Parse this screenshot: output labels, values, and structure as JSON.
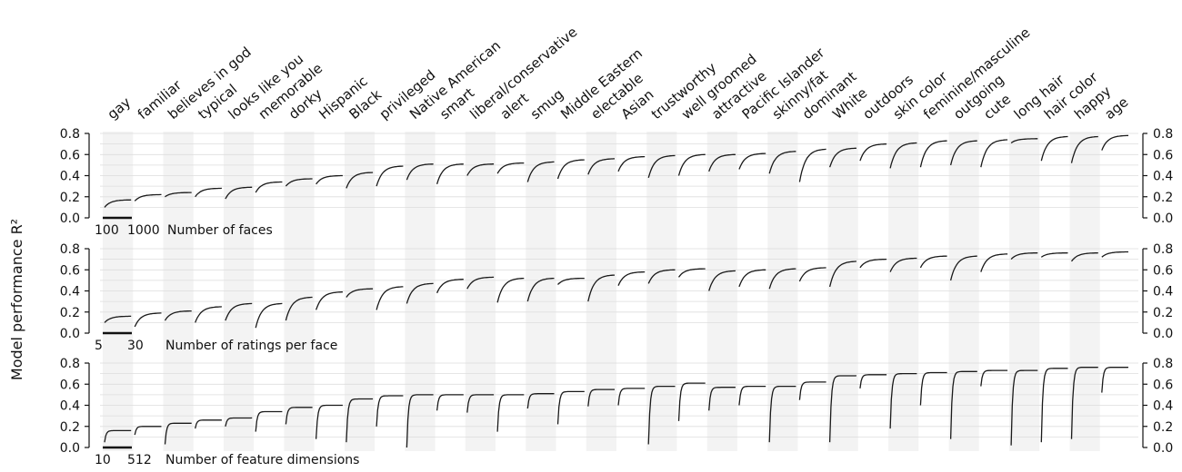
{
  "chart_data": {
    "type": "line",
    "ylabel": "Model performance R²",
    "ylim": [
      0,
      0.8
    ],
    "yticks": [
      "0.0",
      "0.2",
      "0.4",
      "0.6",
      "0.8"
    ],
    "attributes": [
      "gay",
      "familiar",
      "believes in god",
      "typical",
      "looks like you",
      "memorable",
      "dorky",
      "Hispanic",
      "Black",
      "privileged",
      "Native American",
      "smart",
      "liberal/conservative",
      "alert",
      "smug",
      "Middle Eastern",
      "electable",
      "Asian",
      "trustworthy",
      "well groomed",
      "attractive",
      "Pacific Islander",
      "skinny/fat",
      "dominant",
      "White",
      "outdoors",
      "skin color",
      "feminine/masculine",
      "outgoing",
      "cute",
      "long hair",
      "hair color",
      "happy",
      "age"
    ],
    "panels": [
      {
        "name": "faces",
        "xlabel": "Number of faces",
        "scale_start": "100",
        "scale_end": "1000",
        "series": [
          {
            "start": 0.1,
            "end": 0.17
          },
          {
            "start": 0.16,
            "end": 0.22
          },
          {
            "start": 0.2,
            "end": 0.24
          },
          {
            "start": 0.2,
            "end": 0.28
          },
          {
            "start": 0.18,
            "end": 0.29
          },
          {
            "start": 0.24,
            "end": 0.34
          },
          {
            "start": 0.3,
            "end": 0.37
          },
          {
            "start": 0.32,
            "end": 0.4
          },
          {
            "start": 0.28,
            "end": 0.43
          },
          {
            "start": 0.3,
            "end": 0.49
          },
          {
            "start": 0.36,
            "end": 0.51
          },
          {
            "start": 0.32,
            "end": 0.51
          },
          {
            "start": 0.4,
            "end": 0.51
          },
          {
            "start": 0.42,
            "end": 0.52
          },
          {
            "start": 0.34,
            "end": 0.53
          },
          {
            "start": 0.37,
            "end": 0.55
          },
          {
            "start": 0.41,
            "end": 0.56
          },
          {
            "start": 0.44,
            "end": 0.58
          },
          {
            "start": 0.38,
            "end": 0.59
          },
          {
            "start": 0.4,
            "end": 0.6
          },
          {
            "start": 0.44,
            "end": 0.6
          },
          {
            "start": 0.46,
            "end": 0.61
          },
          {
            "start": 0.42,
            "end": 0.63
          },
          {
            "start": 0.34,
            "end": 0.65
          },
          {
            "start": 0.48,
            "end": 0.66
          },
          {
            "start": 0.54,
            "end": 0.7
          },
          {
            "start": 0.47,
            "end": 0.71
          },
          {
            "start": 0.48,
            "end": 0.73
          },
          {
            "start": 0.5,
            "end": 0.73
          },
          {
            "start": 0.48,
            "end": 0.74
          },
          {
            "start": 0.71,
            "end": 0.75
          },
          {
            "start": 0.54,
            "end": 0.77
          },
          {
            "start": 0.52,
            "end": 0.77
          },
          {
            "start": 0.64,
            "end": 0.78
          }
        ]
      },
      {
        "name": "ratings",
        "xlabel": "Number of ratings per face",
        "scale_start": "5",
        "scale_end": "30",
        "series": [
          {
            "start": 0.1,
            "end": 0.16
          },
          {
            "start": 0.06,
            "end": 0.19
          },
          {
            "start": 0.12,
            "end": 0.21
          },
          {
            "start": 0.1,
            "end": 0.25
          },
          {
            "start": 0.12,
            "end": 0.28
          },
          {
            "start": 0.05,
            "end": 0.28
          },
          {
            "start": 0.12,
            "end": 0.34
          },
          {
            "start": 0.22,
            "end": 0.39
          },
          {
            "start": 0.34,
            "end": 0.42
          },
          {
            "start": 0.22,
            "end": 0.44
          },
          {
            "start": 0.28,
            "end": 0.47
          },
          {
            "start": 0.38,
            "end": 0.51
          },
          {
            "start": 0.42,
            "end": 0.53
          },
          {
            "start": 0.29,
            "end": 0.52
          },
          {
            "start": 0.3,
            "end": 0.52
          },
          {
            "start": 0.46,
            "end": 0.52
          },
          {
            "start": 0.3,
            "end": 0.55
          },
          {
            "start": 0.45,
            "end": 0.58
          },
          {
            "start": 0.47,
            "end": 0.6
          },
          {
            "start": 0.53,
            "end": 0.61
          },
          {
            "start": 0.4,
            "end": 0.59
          },
          {
            "start": 0.44,
            "end": 0.6
          },
          {
            "start": 0.42,
            "end": 0.61
          },
          {
            "start": 0.49,
            "end": 0.62
          },
          {
            "start": 0.44,
            "end": 0.68
          },
          {
            "start": 0.62,
            "end": 0.7
          },
          {
            "start": 0.58,
            "end": 0.71
          },
          {
            "start": 0.62,
            "end": 0.73
          },
          {
            "start": 0.5,
            "end": 0.73
          },
          {
            "start": 0.58,
            "end": 0.75
          },
          {
            "start": 0.7,
            "end": 0.76
          },
          {
            "start": 0.72,
            "end": 0.76
          },
          {
            "start": 0.68,
            "end": 0.76
          },
          {
            "start": 0.72,
            "end": 0.77
          }
        ]
      },
      {
        "name": "features",
        "xlabel": "Number of feature dimensions",
        "scale_start": "10",
        "scale_end": "512",
        "series": [
          {
            "start": 0.05,
            "end": 0.16
          },
          {
            "start": 0.12,
            "end": 0.2
          },
          {
            "start": 0.03,
            "end": 0.23
          },
          {
            "start": 0.18,
            "end": 0.26
          },
          {
            "start": 0.2,
            "end": 0.28
          },
          {
            "start": 0.15,
            "end": 0.34
          },
          {
            "start": 0.22,
            "end": 0.38
          },
          {
            "start": 0.08,
            "end": 0.4
          },
          {
            "start": 0.05,
            "end": 0.46
          },
          {
            "start": 0.2,
            "end": 0.49
          },
          {
            "start": 0.0,
            "end": 0.5
          },
          {
            "start": 0.35,
            "end": 0.5
          },
          {
            "start": 0.33,
            "end": 0.5
          },
          {
            "start": 0.15,
            "end": 0.5
          },
          {
            "start": 0.37,
            "end": 0.51
          },
          {
            "start": 0.22,
            "end": 0.53
          },
          {
            "start": 0.39,
            "end": 0.55
          },
          {
            "start": 0.4,
            "end": 0.56
          },
          {
            "start": 0.03,
            "end": 0.58
          },
          {
            "start": 0.25,
            "end": 0.61
          },
          {
            "start": 0.35,
            "end": 0.57
          },
          {
            "start": 0.4,
            "end": 0.58
          },
          {
            "start": 0.05,
            "end": 0.58
          },
          {
            "start": 0.45,
            "end": 0.62
          },
          {
            "start": 0.05,
            "end": 0.68
          },
          {
            "start": 0.56,
            "end": 0.69
          },
          {
            "start": 0.18,
            "end": 0.7
          },
          {
            "start": 0.4,
            "end": 0.71
          },
          {
            "start": 0.08,
            "end": 0.72
          },
          {
            "start": 0.58,
            "end": 0.73
          },
          {
            "start": 0.02,
            "end": 0.73
          },
          {
            "start": 0.05,
            "end": 0.75
          },
          {
            "start": 0.08,
            "end": 0.76
          },
          {
            "start": 0.52,
            "end": 0.76
          }
        ]
      }
    ]
  }
}
